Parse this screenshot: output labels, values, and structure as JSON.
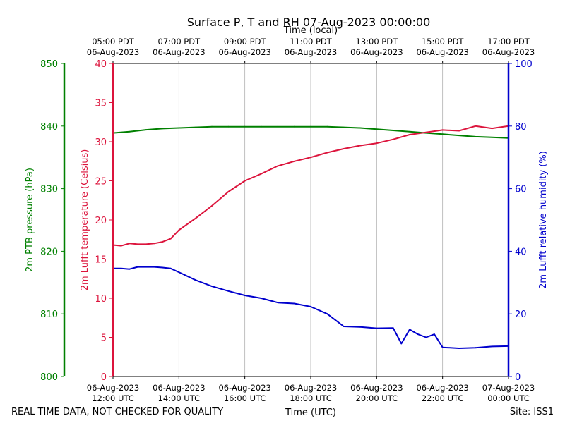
{
  "chart_data": {
    "type": "line",
    "title": "Surface P, T and RH 07-Aug-2023 00:00:00",
    "xlabel_bottom": "Time (UTC)",
    "xlabel_top": "Time (local)",
    "footer_left": "REAL TIME DATA, NOT CHECKED FOR QUALITY",
    "footer_right": "Site: ISS1",
    "x_range_hours_utc": [
      12,
      24
    ],
    "bottom_ticks": [
      {
        "h": 12,
        "date": "06-Aug-2023",
        "time": "12:00 UTC"
      },
      {
        "h": 14,
        "date": "06-Aug-2023",
        "time": "14:00 UTC"
      },
      {
        "h": 16,
        "date": "06-Aug-2023",
        "time": "16:00 UTC"
      },
      {
        "h": 18,
        "date": "06-Aug-2023",
        "time": "18:00 UTC"
      },
      {
        "h": 20,
        "date": "06-Aug-2023",
        "time": "20:00 UTC"
      },
      {
        "h": 22,
        "date": "06-Aug-2023",
        "time": "22:00 UTC"
      },
      {
        "h": 24,
        "date": "07-Aug-2023",
        "time": "00:00 UTC"
      }
    ],
    "top_ticks": [
      {
        "h": 12,
        "time": "05:00 PDT",
        "date": "06-Aug-2023"
      },
      {
        "h": 14,
        "time": "07:00 PDT",
        "date": "06-Aug-2023"
      },
      {
        "h": 16,
        "time": "09:00 PDT",
        "date": "06-Aug-2023"
      },
      {
        "h": 18,
        "time": "11:00 PDT",
        "date": "06-Aug-2023"
      },
      {
        "h": 20,
        "time": "13:00 PDT",
        "date": "06-Aug-2023"
      },
      {
        "h": 22,
        "time": "15:00 PDT",
        "date": "06-Aug-2023"
      },
      {
        "h": 24,
        "time": "17:00 PDT",
        "date": "06-Aug-2023"
      }
    ],
    "axes": {
      "pressure": {
        "label": "2m PTB pressure (hPa)",
        "color": "#008000",
        "ylim": [
          800,
          850
        ],
        "ticks": [
          800,
          810,
          820,
          830,
          840,
          850
        ]
      },
      "temperature": {
        "label": "2m Lufft temperature (Celsius)",
        "color": "#dc143c",
        "ylim": [
          0,
          40
        ],
        "ticks": [
          0,
          5,
          10,
          15,
          20,
          25,
          30,
          35,
          40
        ]
      },
      "humidity": {
        "label": "2m Lufft relative humidity (%)",
        "color": "#0000cd",
        "ylim": [
          0,
          100
        ],
        "ticks": [
          0,
          20,
          40,
          60,
          80,
          100
        ]
      }
    },
    "series": [
      {
        "name": "pressure",
        "axis": "pressure",
        "color": "#008000",
        "x": [
          12.0,
          12.5,
          13.0,
          13.5,
          14.0,
          14.5,
          15.0,
          15.5,
          16.0,
          16.5,
          17.0,
          17.5,
          18.0,
          18.5,
          19.0,
          19.5,
          20.0,
          20.5,
          21.0,
          21.5,
          22.0,
          22.5,
          23.0,
          23.5,
          24.0
        ],
        "y": [
          838.9,
          839.1,
          839.4,
          839.6,
          839.7,
          839.8,
          839.9,
          839.9,
          839.9,
          839.9,
          839.9,
          839.9,
          839.9,
          839.9,
          839.8,
          839.7,
          839.5,
          839.3,
          839.1,
          838.9,
          838.7,
          838.5,
          838.3,
          838.2,
          838.1
        ]
      },
      {
        "name": "temperature",
        "axis": "temperature",
        "color": "#dc143c",
        "x": [
          12.0,
          12.25,
          12.5,
          12.75,
          13.0,
          13.25,
          13.5,
          13.75,
          14.0,
          14.5,
          15.0,
          15.5,
          16.0,
          16.5,
          17.0,
          17.5,
          18.0,
          18.5,
          19.0,
          19.5,
          20.0,
          20.5,
          21.0,
          21.5,
          22.0,
          22.5,
          23.0,
          23.5,
          24.0
        ],
        "y": [
          16.8,
          16.7,
          17.0,
          16.9,
          16.9,
          17.0,
          17.2,
          17.6,
          18.7,
          20.2,
          21.8,
          23.6,
          25.0,
          25.9,
          26.9,
          27.5,
          28.0,
          28.6,
          29.1,
          29.5,
          29.8,
          30.3,
          30.9,
          31.2,
          31.5,
          31.4,
          32.0,
          31.7,
          32.0
        ]
      },
      {
        "name": "humidity",
        "axis": "humidity",
        "color": "#0000cd",
        "x": [
          12.0,
          12.25,
          12.5,
          12.75,
          13.0,
          13.25,
          13.5,
          13.75,
          14.0,
          14.5,
          15.0,
          15.5,
          16.0,
          16.5,
          17.0,
          17.5,
          18.0,
          18.5,
          18.75,
          19.0,
          19.5,
          20.0,
          20.5,
          20.75,
          21.0,
          21.25,
          21.5,
          21.75,
          22.0,
          22.5,
          23.0,
          23.5,
          24.0
        ],
        "y": [
          34.5,
          34.5,
          34.3,
          35.0,
          35.0,
          35.0,
          34.8,
          34.5,
          33.3,
          30.8,
          28.8,
          27.3,
          25.9,
          25.0,
          23.6,
          23.3,
          22.3,
          20.0,
          18.0,
          16.0,
          15.8,
          15.4,
          15.5,
          10.5,
          15.0,
          13.5,
          12.5,
          13.5,
          9.3,
          9.0,
          9.2,
          9.6,
          9.7
        ]
      }
    ]
  }
}
